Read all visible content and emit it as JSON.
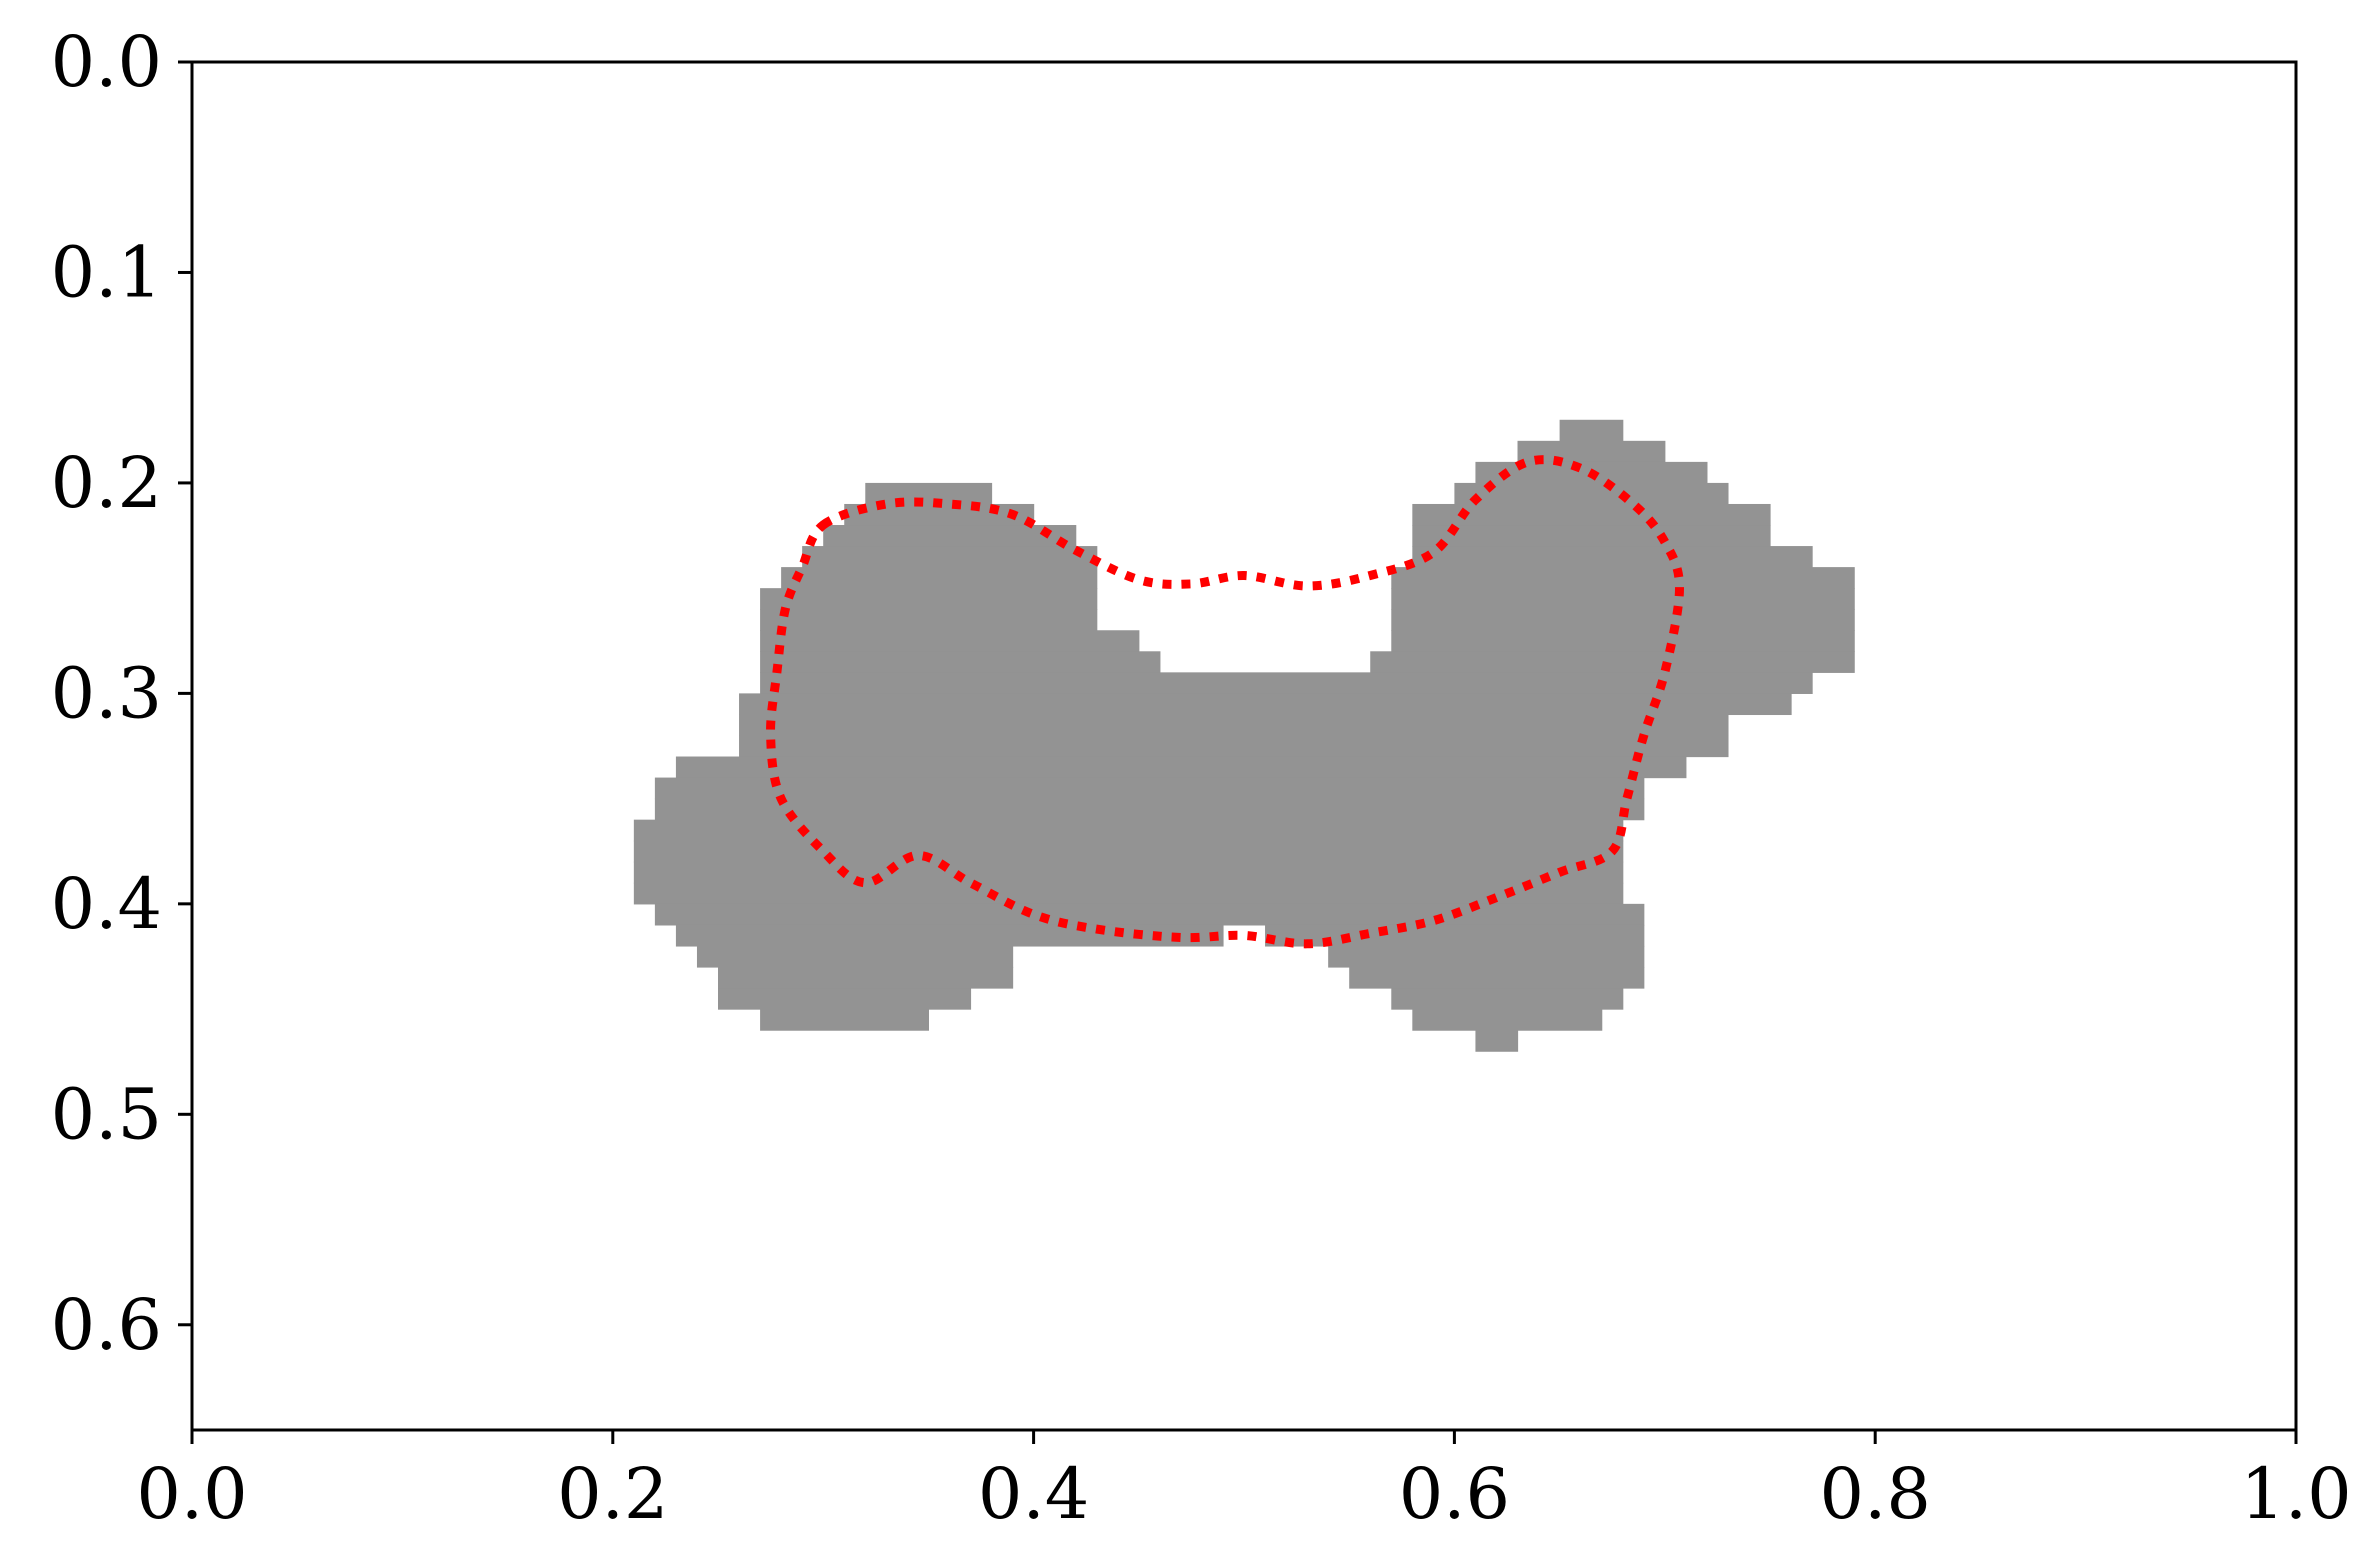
{
  "chart_data": {
    "type": "heatmap",
    "title": "",
    "xlabel": "",
    "ylabel": "",
    "xlim": [
      0.0,
      1.0
    ],
    "ylim": [
      0.65,
      0.0
    ],
    "y_inverted": true,
    "grid": false,
    "legend": "none",
    "x_ticks": [
      0.0,
      0.2,
      0.4,
      0.6,
      0.8,
      1.0
    ],
    "x_tick_labels": [
      "0.0",
      "0.2",
      "0.4",
      "0.6",
      "0.8",
      "1.0"
    ],
    "y_ticks": [
      0.0,
      0.1,
      0.2,
      0.3,
      0.4,
      0.5,
      0.6
    ],
    "y_tick_labels": [
      "0.0",
      "0.1",
      "0.2",
      "0.3",
      "0.4",
      "0.5",
      "0.6"
    ],
    "mask": {
      "color": "#939393",
      "cell_size": 0.01,
      "row_spans": [
        {
          "y": 0.17,
          "spans": [
            [
              0.65,
              0.68
            ]
          ]
        },
        {
          "y": 0.18,
          "spans": [
            [
              0.63,
              0.7
            ]
          ]
        },
        {
          "y": 0.19,
          "spans": [
            [
              0.61,
              0.72
            ]
          ]
        },
        {
          "y": 0.2,
          "spans": [
            [
              0.32,
              0.38
            ],
            [
              0.6,
              0.73
            ]
          ]
        },
        {
          "y": 0.21,
          "spans": [
            [
              0.31,
              0.4
            ],
            [
              0.58,
              0.75
            ]
          ]
        },
        {
          "y": 0.22,
          "spans": [
            [
              0.3,
              0.42
            ],
            [
              0.58,
              0.75
            ]
          ]
        },
        {
          "y": 0.23,
          "spans": [
            [
              0.29,
              0.43
            ],
            [
              0.58,
              0.77
            ]
          ]
        },
        {
          "y": 0.24,
          "spans": [
            [
              0.28,
              0.43
            ],
            [
              0.57,
              0.79
            ]
          ]
        },
        {
          "y": 0.25,
          "spans": [
            [
              0.27,
              0.43
            ],
            [
              0.57,
              0.79
            ]
          ]
        },
        {
          "y": 0.26,
          "spans": [
            [
              0.27,
              0.43
            ],
            [
              0.57,
              0.79
            ]
          ]
        },
        {
          "y": 0.27,
          "spans": [
            [
              0.27,
              0.45
            ],
            [
              0.57,
              0.79
            ]
          ]
        },
        {
          "y": 0.28,
          "spans": [
            [
              0.27,
              0.46
            ],
            [
              0.56,
              0.79
            ]
          ]
        },
        {
          "y": 0.29,
          "spans": [
            [
              0.27,
              0.77
            ]
          ]
        },
        {
          "y": 0.3,
          "spans": [
            [
              0.26,
              0.76
            ]
          ]
        },
        {
          "y": 0.31,
          "spans": [
            [
              0.26,
              0.73
            ]
          ]
        },
        {
          "y": 0.32,
          "spans": [
            [
              0.26,
              0.73
            ]
          ]
        },
        {
          "y": 0.33,
          "spans": [
            [
              0.23,
              0.71
            ]
          ]
        },
        {
          "y": 0.34,
          "spans": [
            [
              0.22,
              0.69
            ]
          ]
        },
        {
          "y": 0.35,
          "spans": [
            [
              0.22,
              0.69
            ]
          ]
        },
        {
          "y": 0.36,
          "spans": [
            [
              0.21,
              0.68
            ]
          ]
        },
        {
          "y": 0.37,
          "spans": [
            [
              0.21,
              0.68
            ]
          ]
        },
        {
          "y": 0.38,
          "spans": [
            [
              0.21,
              0.68
            ]
          ]
        },
        {
          "y": 0.39,
          "spans": [
            [
              0.21,
              0.68
            ]
          ]
        },
        {
          "y": 0.4,
          "spans": [
            [
              0.22,
              0.69
            ]
          ]
        },
        {
          "y": 0.41,
          "spans": [
            [
              0.23,
              0.49
            ],
            [
              0.51,
              0.69
            ]
          ]
        },
        {
          "y": 0.42,
          "spans": [
            [
              0.24,
              0.39
            ],
            [
              0.54,
              0.69
            ]
          ]
        },
        {
          "y": 0.43,
          "spans": [
            [
              0.25,
              0.39
            ],
            [
              0.55,
              0.69
            ]
          ]
        },
        {
          "y": 0.44,
          "spans": [
            [
              0.25,
              0.37
            ],
            [
              0.57,
              0.68
            ]
          ]
        },
        {
          "y": 0.45,
          "spans": [
            [
              0.27,
              0.35
            ],
            [
              0.58,
              0.67
            ]
          ]
        },
        {
          "y": 0.46,
          "spans": [
            [
              0.61,
              0.63
            ]
          ]
        }
      ]
    },
    "contour": {
      "color": "#ff0000",
      "line_style": "dotted",
      "points": [
        [
          0.3,
          0.22
        ],
        [
          0.33,
          0.21
        ],
        [
          0.36,
          0.21
        ],
        [
          0.39,
          0.215
        ],
        [
          0.42,
          0.232
        ],
        [
          0.45,
          0.246
        ],
        [
          0.475,
          0.248
        ],
        [
          0.5,
          0.244
        ],
        [
          0.53,
          0.249
        ],
        [
          0.56,
          0.244
        ],
        [
          0.59,
          0.233
        ],
        [
          0.61,
          0.208
        ],
        [
          0.635,
          0.19
        ],
        [
          0.66,
          0.193
        ],
        [
          0.685,
          0.21
        ],
        [
          0.7,
          0.228
        ],
        [
          0.707,
          0.25
        ],
        [
          0.7,
          0.29
        ],
        [
          0.69,
          0.32
        ],
        [
          0.682,
          0.35
        ],
        [
          0.675,
          0.375
        ],
        [
          0.65,
          0.385
        ],
        [
          0.62,
          0.397
        ],
        [
          0.59,
          0.408
        ],
        [
          0.56,
          0.414
        ],
        [
          0.53,
          0.419
        ],
        [
          0.5,
          0.415
        ],
        [
          0.47,
          0.416
        ],
        [
          0.43,
          0.412
        ],
        [
          0.4,
          0.405
        ],
        [
          0.37,
          0.39
        ],
        [
          0.345,
          0.377
        ],
        [
          0.32,
          0.39
        ],
        [
          0.3,
          0.375
        ],
        [
          0.28,
          0.35
        ],
        [
          0.275,
          0.32
        ],
        [
          0.278,
          0.29
        ],
        [
          0.282,
          0.26
        ],
        [
          0.29,
          0.24
        ],
        [
          0.3,
          0.22
        ]
      ]
    }
  }
}
